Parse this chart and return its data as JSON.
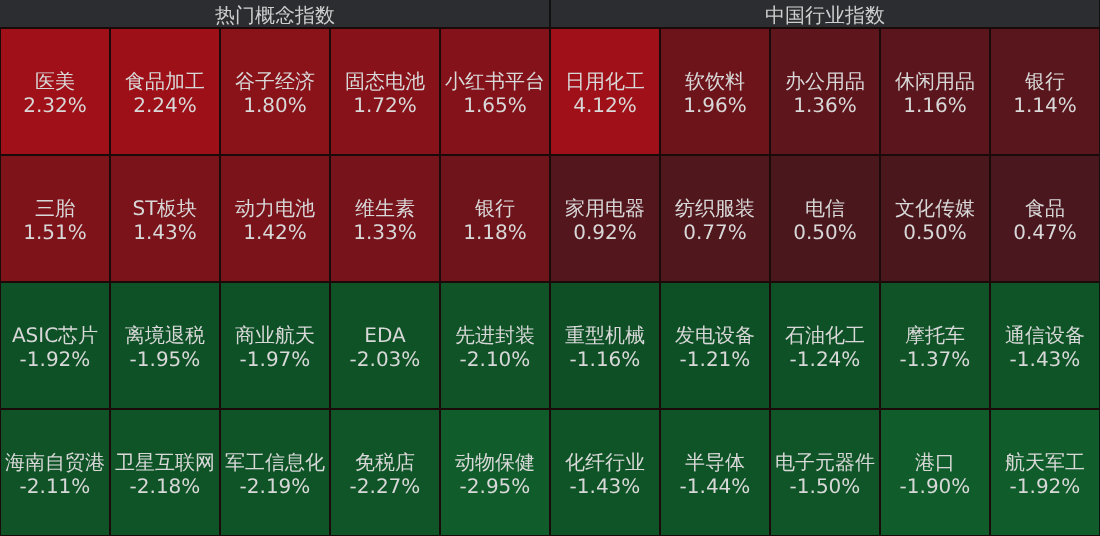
{
  "chart_data": [
    {
      "type": "other",
      "title": "热门概念指数",
      "categories": [
        "医美",
        "食品加工",
        "谷子经济",
        "固态电池",
        "小红书平台",
        "三胎",
        "ST板块",
        "动力电池",
        "维生素",
        "银行",
        "ASIC芯片",
        "离境退税",
        "商业航天",
        "EDA",
        "先进封装",
        "海南自贸港",
        "卫星互联网",
        "军工信息化",
        "免税店",
        "动物保健"
      ],
      "values": [
        2.32,
        2.24,
        1.8,
        1.72,
        1.65,
        1.51,
        1.43,
        1.42,
        1.33,
        1.18,
        -1.92,
        -1.95,
        -1.97,
        -2.03,
        -2.1,
        -2.11,
        -2.18,
        -2.19,
        -2.27,
        -2.95
      ],
      "value_labels": [
        "2.32%",
        "2.24%",
        "1.80%",
        "1.72%",
        "1.65%",
        "1.51%",
        "1.43%",
        "1.42%",
        "1.33%",
        "1.18%",
        "-1.92%",
        "-1.95%",
        "-1.97%",
        "-2.03%",
        "-2.10%",
        "-2.11%",
        "-2.18%",
        "-2.19%",
        "-2.27%",
        "-2.95%"
      ]
    },
    {
      "type": "other",
      "title": "中国行业指数",
      "categories": [
        "日用化工",
        "软饮料",
        "办公用品",
        "休闲用品",
        "银行",
        "家用电器",
        "纺织服装",
        "电信",
        "文化传媒",
        "食品",
        "重型机械",
        "发电设备",
        "石油化工",
        "摩托车",
        "通信设备",
        "化纤行业",
        "半导体",
        "电子元器件",
        "港口",
        "航天军工"
      ],
      "values": [
        4.12,
        1.96,
        1.36,
        1.16,
        1.14,
        0.92,
        0.77,
        0.5,
        0.5,
        0.47,
        -1.16,
        -1.21,
        -1.24,
        -1.37,
        -1.43,
        -1.43,
        -1.44,
        -1.5,
        -1.9,
        -1.92
      ],
      "value_labels": [
        "4.12%",
        "1.96%",
        "1.36%",
        "1.16%",
        "1.14%",
        "0.92%",
        "0.77%",
        "0.50%",
        "0.50%",
        "0.47%",
        "-1.16%",
        "-1.21%",
        "-1.24%",
        "-1.37%",
        "-1.43%",
        "-1.43%",
        "-1.44%",
        "-1.50%",
        "-1.90%",
        "-1.92%"
      ]
    }
  ]
}
